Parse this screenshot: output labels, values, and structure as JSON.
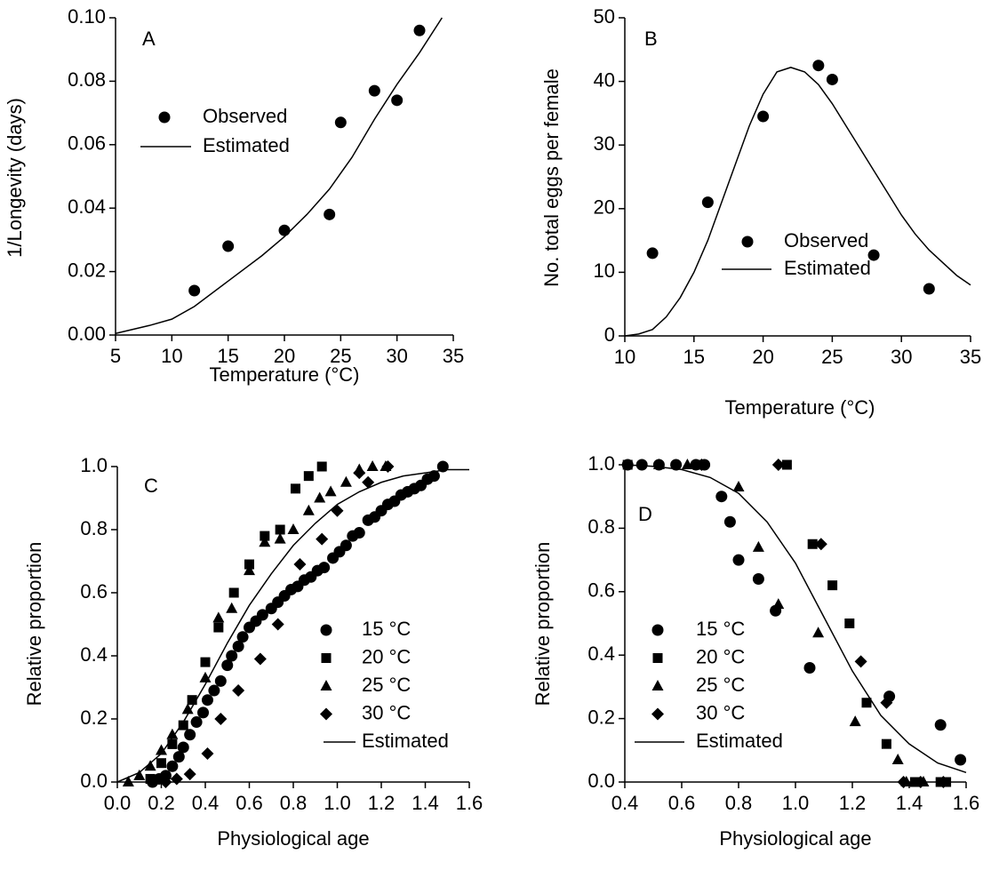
{
  "chart_data": [
    {
      "type": "scatter",
      "title": "A",
      "x_label": "Temperature (°C)",
      "y_label": "1/Longevity (days)",
      "xlim": [
        5,
        35
      ],
      "xticks": [
        5,
        10,
        15,
        20,
        25,
        30,
        35
      ],
      "ylim": [
        0,
        0.1
      ],
      "yticks": [
        {
          "value": 0,
          "label": "0.00"
        },
        {
          "value": 0.02,
          "label": "0.02"
        },
        {
          "value": 0.04,
          "label": "0.04"
        },
        {
          "value": 0.06,
          "label": "0.06"
        },
        {
          "value": 0.08,
          "label": "0.08"
        },
        {
          "value": 0.1,
          "label": "0.10"
        }
      ],
      "series": [
        {
          "name": "Observed",
          "marker": "circle",
          "color": "#000000",
          "x": [
            12,
            15,
            20,
            24,
            25,
            28,
            30,
            32
          ],
          "values": [
            0.014,
            0.028,
            0.033,
            0.038,
            0.067,
            0.077,
            0.074,
            0.096
          ]
        },
        {
          "name": "Estimated",
          "marker": "line",
          "color": "#000000",
          "x": [
            5,
            8,
            10,
            12,
            15,
            18,
            20,
            22,
            24,
            26,
            28,
            30,
            32,
            34
          ],
          "values": [
            0.0005,
            0.003,
            0.005,
            0.009,
            0.017,
            0.025,
            0.031,
            0.038,
            0.046,
            0.056,
            0.068,
            0.079,
            0.089,
            0.1
          ]
        }
      ]
    },
    {
      "type": "scatter",
      "title": "B",
      "x_label": "Temperature (°C)",
      "y_label": "No. total eggs per female",
      "xlim": [
        10,
        35
      ],
      "xticks": [
        10,
        15,
        20,
        25,
        30,
        35
      ],
      "ylim": [
        0,
        50
      ],
      "yticks": [
        0,
        10,
        20,
        30,
        40,
        50
      ],
      "series": [
        {
          "name": "Observed",
          "marker": "circle",
          "color": "#000000",
          "x": [
            12,
            16,
            20,
            24,
            25,
            28,
            32
          ],
          "values": [
            13,
            21,
            34.5,
            42.5,
            40.3,
            12.7,
            7.4
          ]
        },
        {
          "name": "Estimated",
          "marker": "line",
          "color": "#000000",
          "x": [
            10,
            11,
            12,
            13,
            14,
            15,
            16,
            17,
            18,
            19,
            20,
            21,
            22,
            23,
            24,
            25,
            26,
            27,
            28,
            29,
            30,
            31,
            32,
            33,
            34,
            35
          ],
          "values": [
            0,
            0.3,
            1,
            3,
            6,
            10,
            15,
            21,
            27,
            33,
            38,
            41.5,
            42.2,
            41.5,
            39.5,
            36.5,
            33,
            29.5,
            26,
            22.5,
            19,
            16,
            13.5,
            11.5,
            9.5,
            8
          ]
        }
      ]
    },
    {
      "type": "scatter",
      "title": "C",
      "x_label": "Physiological age",
      "y_label": "Relative proportion",
      "xlim": [
        0,
        1.6
      ],
      "xticks": [
        {
          "value": 0,
          "label": "0.0"
        },
        0.2,
        0.4,
        0.6,
        0.8,
        {
          "value": 1,
          "label": "1.0"
        },
        1.2,
        1.4,
        1.6
      ],
      "ylim": [
        0,
        1
      ],
      "yticks": [
        {
          "value": 0,
          "label": "0.0"
        },
        0.2,
        0.4,
        0.6,
        0.8,
        {
          "value": 1,
          "label": "1.0"
        }
      ],
      "series": [
        {
          "name": "15 °C",
          "marker": "circle",
          "color": "#000000",
          "x": [
            0.16,
            0.19,
            0.22,
            0.25,
            0.28,
            0.3,
            0.33,
            0.36,
            0.39,
            0.41,
            0.44,
            0.47,
            0.5,
            0.52,
            0.55,
            0.57,
            0.6,
            0.63,
            0.66,
            0.7,
            0.73,
            0.76,
            0.79,
            0.82,
            0.85,
            0.88,
            0.91,
            0.94,
            0.98,
            1.01,
            1.04,
            1.07,
            1.1,
            1.14,
            1.17,
            1.2,
            1.23,
            1.26,
            1.29,
            1.32,
            1.35,
            1.38,
            1.41,
            1.44,
            1.48
          ],
          "values": [
            0,
            0.01,
            0.02,
            0.05,
            0.08,
            0.11,
            0.15,
            0.19,
            0.22,
            0.26,
            0.29,
            0.32,
            0.37,
            0.4,
            0.43,
            0.46,
            0.49,
            0.51,
            0.53,
            0.55,
            0.57,
            0.59,
            0.61,
            0.62,
            0.64,
            0.65,
            0.67,
            0.68,
            0.71,
            0.73,
            0.75,
            0.78,
            0.79,
            0.83,
            0.84,
            0.86,
            0.88,
            0.89,
            0.91,
            0.92,
            0.93,
            0.94,
            0.96,
            0.97,
            1
          ]
        },
        {
          "name": "20 °C",
          "marker": "square",
          "color": "#000000",
          "x": [
            0.15,
            0.2,
            0.25,
            0.3,
            0.34,
            0.4,
            0.46,
            0.53,
            0.6,
            0.67,
            0.74,
            0.81,
            0.87,
            0.93
          ],
          "values": [
            0.01,
            0.06,
            0.12,
            0.18,
            0.26,
            0.38,
            0.49,
            0.6,
            0.69,
            0.78,
            0.8,
            0.93,
            0.97,
            1
          ]
        },
        {
          "name": "25 °C",
          "marker": "triangle",
          "color": "#000000",
          "x": [
            0.05,
            0.1,
            0.15,
            0.2,
            0.25,
            0.32,
            0.4,
            0.46,
            0.52,
            0.6,
            0.67,
            0.74,
            0.8,
            0.87,
            0.92,
            0.97,
            1.04,
            1.1,
            1.16,
            1.22
          ],
          "values": [
            0,
            0.02,
            0.05,
            0.1,
            0.15,
            0.23,
            0.33,
            0.52,
            0.55,
            0.67,
            0.76,
            0.77,
            0.8,
            0.86,
            0.9,
            0.92,
            0.95,
            0.99,
            1,
            1
          ]
        },
        {
          "name": "30 °C",
          "marker": "diamond",
          "color": "#000000",
          "x": [
            0.22,
            0.27,
            0.33,
            0.41,
            0.47,
            0.55,
            0.65,
            0.73,
            0.83,
            0.93,
            1,
            1.1,
            1.14,
            1.23
          ],
          "values": [
            0,
            0.01,
            0.025,
            0.09,
            0.2,
            0.29,
            0.39,
            0.5,
            0.69,
            0.77,
            0.86,
            0.98,
            0.95,
            1
          ]
        },
        {
          "name": "Estimated",
          "marker": "line",
          "color": "#000000",
          "x": [
            0,
            0.1,
            0.2,
            0.3,
            0.4,
            0.5,
            0.6,
            0.7,
            0.8,
            0.9,
            1,
            1.1,
            1.2,
            1.3,
            1.4,
            1.5,
            1.6
          ],
          "values": [
            0,
            0.03,
            0.09,
            0.19,
            0.31,
            0.44,
            0.56,
            0.66,
            0.75,
            0.82,
            0.88,
            0.92,
            0.95,
            0.97,
            0.98,
            0.99,
            0.99
          ]
        }
      ]
    },
    {
      "type": "scatter",
      "title": "D",
      "x_label": "Physiological age",
      "y_label": "Relative proportion",
      "xlim": [
        0.4,
        1.6
      ],
      "xticks": [
        0.4,
        0.6,
        0.8,
        {
          "value": 1,
          "label": "1.0"
        },
        1.2,
        1.4,
        1.6
      ],
      "ylim": [
        0,
        1
      ],
      "yticks": [
        {
          "value": 0,
          "label": "0.0"
        },
        0.2,
        0.4,
        0.6,
        0.8,
        {
          "value": 1,
          "label": "1.0"
        }
      ],
      "series": [
        {
          "name": "15 °C",
          "marker": "circle",
          "color": "#000000",
          "x": [
            0.41,
            0.46,
            0.52,
            0.58,
            0.65,
            0.68,
            0.74,
            0.77,
            0.8,
            0.87,
            0.93,
            1.05,
            1.33,
            1.51,
            1.58
          ],
          "values": [
            1,
            1,
            1,
            1,
            1,
            1,
            0.9,
            0.82,
            0.7,
            0.64,
            0.54,
            0.36,
            0.27,
            0.18,
            0.07
          ]
        },
        {
          "name": "20 °C",
          "marker": "square",
          "color": "#000000",
          "x": [
            0.41,
            0.67,
            0.97,
            1.06,
            1.13,
            1.19,
            1.25,
            1.32,
            1.42,
            1.51,
            1.53
          ],
          "values": [
            1,
            1,
            1,
            0.75,
            0.62,
            0.5,
            0.25,
            0.12,
            0,
            0,
            0
          ]
        },
        {
          "name": "25 °C",
          "marker": "triangle",
          "color": "#000000",
          "x": [
            0.52,
            0.62,
            0.8,
            0.87,
            0.94,
            1.08,
            1.21,
            1.36,
            1.39,
            1.45
          ],
          "values": [
            1,
            1,
            0.93,
            0.74,
            0.56,
            0.47,
            0.19,
            0.07,
            0,
            0
          ]
        },
        {
          "name": "30 °C",
          "marker": "diamond",
          "color": "#000000",
          "x": [
            0.67,
            0.94,
            1.09,
            1.23,
            1.32,
            1.38,
            1.44,
            1.52
          ],
          "values": [
            1,
            1,
            0.75,
            0.38,
            0.25,
            0,
            0,
            0
          ]
        },
        {
          "name": "Estimated",
          "marker": "line",
          "color": "#000000",
          "x": [
            0.4,
            0.5,
            0.6,
            0.7,
            0.8,
            0.9,
            1,
            1.1,
            1.2,
            1.3,
            1.4,
            1.5,
            1.6
          ],
          "values": [
            1,
            0.995,
            0.985,
            0.96,
            0.91,
            0.82,
            0.69,
            0.52,
            0.35,
            0.21,
            0.12,
            0.06,
            0.03
          ]
        }
      ]
    }
  ]
}
